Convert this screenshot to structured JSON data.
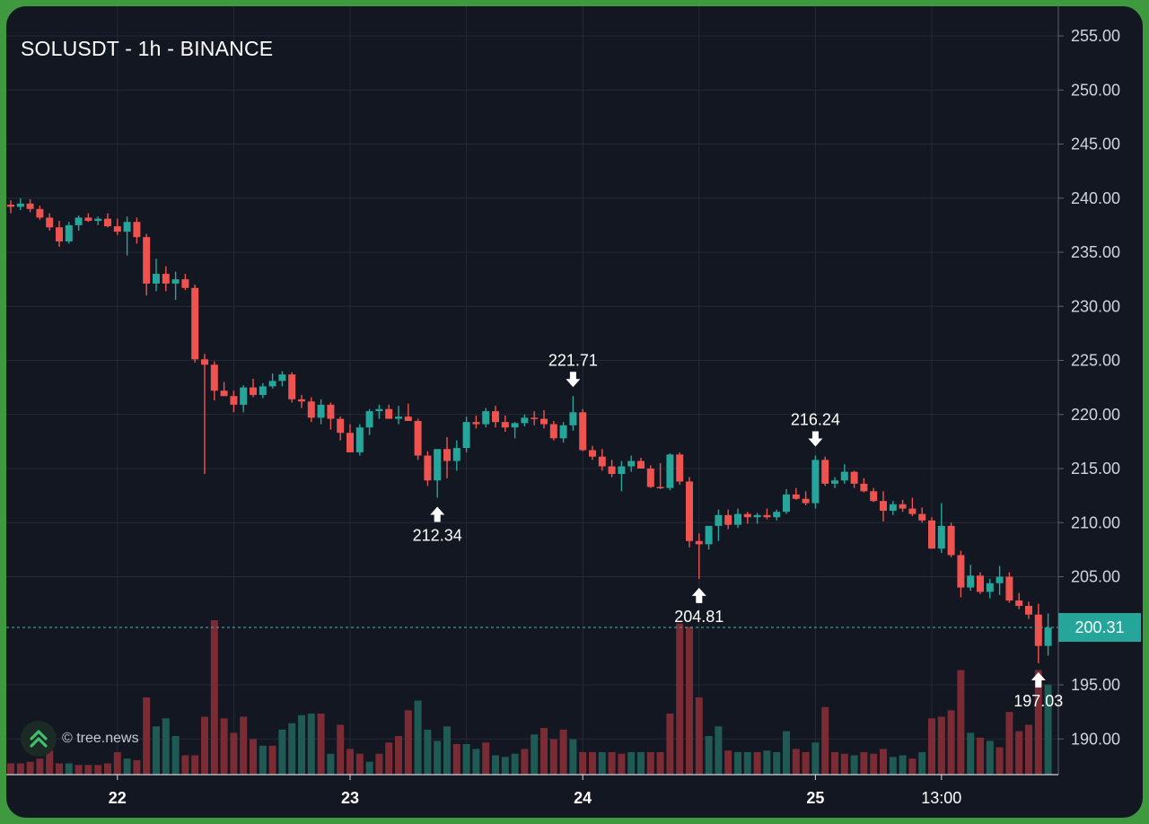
{
  "chart_title": "SOLUSDT - 1h - BINANCE",
  "last_price": "200.31",
  "watermark": "© tree.news",
  "colors": {
    "background": "#131722",
    "up": "#26a69a",
    "down": "#ef5350",
    "volume_up": "#1f5a55",
    "volume_down": "#7a2b33",
    "price_line": "#26a69a",
    "grid": "#252a36",
    "frame": "#3f9a3f"
  },
  "chart_data": {
    "type": "candlestick",
    "symbol": "SOLUSDT",
    "interval": "1h",
    "exchange": "BINANCE",
    "y_axis": {
      "position": "right",
      "ticks": [
        "255.00",
        "250.00",
        "245.00",
        "240.00",
        "235.00",
        "230.00",
        "225.00",
        "220.00",
        "215.00",
        "210.00",
        "205.00",
        "195.00",
        "190.00"
      ],
      "ylim": [
        186.5,
        257.5
      ]
    },
    "x_axis": {
      "ticks": [
        {
          "label": "22",
          "bold": true,
          "index": 11
        },
        {
          "label": "23",
          "bold": true,
          "index": 35
        },
        {
          "label": "24",
          "bold": true,
          "index": 59
        },
        {
          "label": "25",
          "bold": true,
          "index": 83
        },
        {
          "label": "13:00",
          "bold": false,
          "index": 96
        }
      ]
    },
    "grid": true,
    "current_price": 200.31,
    "candles": [
      [
        239.4,
        239.8,
        238.6,
        239.2
      ],
      [
        239.2,
        240.0,
        238.9,
        239.5
      ],
      [
        239.5,
        239.9,
        238.7,
        239.0
      ],
      [
        239.0,
        239.3,
        238.0,
        238.2
      ],
      [
        238.2,
        238.6,
        237.0,
        237.3
      ],
      [
        237.3,
        237.9,
        235.5,
        236.0
      ],
      [
        236.0,
        237.8,
        235.8,
        237.5
      ],
      [
        237.5,
        238.4,
        237.0,
        238.2
      ],
      [
        238.2,
        238.6,
        237.8,
        237.9
      ],
      [
        237.9,
        238.3,
        237.5,
        238.1
      ],
      [
        238.1,
        238.6,
        237.3,
        237.4
      ],
      [
        237.4,
        238.1,
        236.6,
        236.9
      ],
      [
        236.9,
        238.3,
        234.7,
        237.8
      ],
      [
        237.8,
        238.2,
        235.8,
        236.4
      ],
      [
        236.4,
        236.7,
        231.0,
        232.1
      ],
      [
        232.1,
        234.4,
        231.4,
        233.0
      ],
      [
        233.0,
        233.7,
        231.4,
        232.1
      ],
      [
        232.1,
        233.2,
        230.6,
        232.5
      ],
      [
        232.5,
        233.0,
        231.5,
        231.7
      ],
      [
        231.7,
        232.0,
        224.8,
        225.1
      ],
      [
        225.1,
        225.6,
        214.5,
        224.6
      ],
      [
        224.6,
        224.9,
        221.3,
        222.2
      ],
      [
        222.2,
        223.0,
        221.7,
        221.7
      ],
      [
        221.7,
        222.2,
        220.2,
        220.9
      ],
      [
        220.9,
        222.7,
        220.2,
        222.5
      ],
      [
        222.5,
        223.3,
        221.6,
        221.8
      ],
      [
        221.8,
        222.9,
        221.5,
        222.6
      ],
      [
        222.6,
        223.8,
        222.4,
        223.1
      ],
      [
        223.1,
        224.0,
        222.6,
        223.7
      ],
      [
        223.7,
        223.9,
        221.1,
        221.4
      ],
      [
        221.4,
        221.8,
        220.6,
        221.2
      ],
      [
        221.2,
        221.6,
        219.3,
        219.7
      ],
      [
        219.7,
        221.4,
        219.1,
        220.9
      ],
      [
        220.9,
        221.1,
        218.6,
        219.6
      ],
      [
        219.6,
        219.8,
        217.6,
        218.3
      ],
      [
        218.3,
        219.1,
        216.7,
        216.5
      ],
      [
        216.5,
        219.1,
        216.2,
        218.8
      ],
      [
        218.8,
        220.5,
        218.1,
        220.3
      ],
      [
        220.3,
        220.9,
        219.6,
        220.5
      ],
      [
        220.5,
        220.9,
        219.8,
        219.6
      ],
      [
        219.6,
        220.8,
        219.1,
        219.8
      ],
      [
        219.8,
        221.0,
        219.6,
        219.4
      ],
      [
        219.4,
        219.6,
        215.8,
        216.2
      ],
      [
        216.2,
        216.6,
        213.4,
        213.9
      ],
      [
        213.9,
        216.7,
        212.3,
        216.8
      ],
      [
        216.8,
        217.9,
        214.1,
        215.7
      ],
      [
        215.7,
        217.6,
        214.8,
        216.9
      ],
      [
        216.9,
        219.8,
        216.5,
        219.3
      ],
      [
        219.3,
        219.9,
        218.7,
        219.1
      ],
      [
        219.1,
        220.6,
        218.8,
        220.3
      ],
      [
        220.3,
        220.8,
        218.8,
        219.3
      ],
      [
        219.3,
        219.9,
        218.4,
        218.8
      ],
      [
        218.8,
        219.3,
        217.8,
        219.2
      ],
      [
        219.2,
        220.0,
        218.9,
        219.7
      ],
      [
        219.7,
        220.3,
        219.0,
        219.6
      ],
      [
        219.6,
        220.4,
        218.7,
        219.1
      ],
      [
        219.1,
        219.4,
        217.6,
        217.8
      ],
      [
        217.8,
        219.3,
        217.4,
        219.0
      ],
      [
        219.0,
        221.7,
        218.5,
        220.2
      ],
      [
        220.2,
        220.5,
        216.6,
        216.7
      ],
      [
        216.7,
        217.1,
        215.8,
        216.1
      ],
      [
        216.1,
        216.8,
        214.8,
        215.2
      ],
      [
        215.2,
        215.8,
        214.2,
        214.5
      ],
      [
        214.5,
        215.7,
        212.9,
        215.2
      ],
      [
        215.2,
        216.2,
        214.7,
        215.7
      ],
      [
        215.7,
        216.0,
        215.2,
        215.0
      ],
      [
        215.0,
        215.3,
        213.2,
        213.3
      ],
      [
        213.3,
        215.5,
        213.1,
        213.2
      ],
      [
        213.2,
        216.4,
        213.0,
        216.3
      ],
      [
        216.3,
        216.5,
        213.5,
        213.8
      ],
      [
        213.8,
        214.2,
        207.7,
        208.3
      ],
      [
        208.3,
        209.0,
        204.8,
        208.0
      ],
      [
        208.0,
        209.6,
        207.5,
        209.7
      ],
      [
        209.7,
        211.2,
        208.3,
        210.7
      ],
      [
        210.7,
        211.2,
        209.4,
        209.8
      ],
      [
        209.8,
        211.3,
        209.5,
        210.8
      ],
      [
        210.8,
        211.0,
        209.9,
        210.5
      ],
      [
        210.5,
        210.9,
        209.9,
        210.7
      ],
      [
        210.7,
        211.3,
        210.3,
        210.5
      ],
      [
        210.5,
        211.2,
        210.2,
        211.0
      ],
      [
        211.0,
        213.1,
        210.8,
        212.6
      ],
      [
        212.6,
        213.2,
        212.1,
        212.2
      ],
      [
        212.2,
        212.9,
        211.6,
        211.8
      ],
      [
        211.8,
        216.2,
        211.3,
        215.8
      ],
      [
        215.8,
        216.1,
        213.4,
        213.6
      ],
      [
        213.6,
        214.2,
        213.2,
        213.9
      ],
      [
        213.9,
        215.4,
        213.6,
        214.7
      ],
      [
        214.7,
        214.8,
        213.2,
        213.6
      ],
      [
        213.6,
        214.1,
        212.8,
        212.9
      ],
      [
        212.9,
        213.2,
        211.9,
        212.0
      ],
      [
        212.0,
        212.9,
        210.1,
        211.1
      ],
      [
        211.1,
        212.0,
        210.7,
        211.7
      ],
      [
        211.7,
        212.1,
        211.0,
        211.3
      ],
      [
        211.3,
        212.3,
        210.6,
        210.8
      ],
      [
        210.8,
        211.4,
        210.0,
        210.2
      ],
      [
        210.2,
        210.5,
        207.6,
        207.6
      ],
      [
        207.6,
        211.8,
        207.2,
        209.7
      ],
      [
        209.7,
        210.0,
        206.8,
        207.0
      ],
      [
        207.0,
        207.4,
        203.1,
        204.0
      ],
      [
        204.0,
        206.1,
        203.7,
        205.1
      ],
      [
        205.1,
        205.4,
        203.4,
        203.6
      ],
      [
        203.6,
        204.8,
        203.0,
        204.4
      ],
      [
        204.4,
        206.0,
        203.3,
        205.0
      ],
      [
        205.0,
        205.4,
        202.6,
        202.8
      ],
      [
        202.8,
        203.5,
        202.0,
        202.3
      ],
      [
        202.3,
        202.7,
        201.1,
        201.5
      ],
      [
        201.5,
        202.5,
        197.0,
        198.6
      ],
      [
        198.6,
        201.6,
        197.7,
        200.3
      ]
    ],
    "volumes": [
      [
        7,
        "d"
      ],
      [
        7,
        "d"
      ],
      [
        8,
        "d"
      ],
      [
        10,
        "d"
      ],
      [
        15,
        "d"
      ],
      [
        7,
        "d"
      ],
      [
        7,
        "u"
      ],
      [
        6,
        "d"
      ],
      [
        6,
        "d"
      ],
      [
        6,
        "d"
      ],
      [
        7,
        "d"
      ],
      [
        14,
        "d"
      ],
      [
        10,
        "u"
      ],
      [
        9,
        "d"
      ],
      [
        48,
        "d"
      ],
      [
        30,
        "u"
      ],
      [
        35,
        "u"
      ],
      [
        24,
        "u"
      ],
      [
        12,
        "d"
      ],
      [
        12,
        "d"
      ],
      [
        36,
        "d"
      ],
      [
        96,
        "d"
      ],
      [
        35,
        "d"
      ],
      [
        26,
        "d"
      ],
      [
        36,
        "d"
      ],
      [
        22,
        "d"
      ],
      [
        18,
        "u"
      ],
      [
        18,
        "d"
      ],
      [
        28,
        "u"
      ],
      [
        32,
        "u"
      ],
      [
        37,
        "u"
      ],
      [
        38,
        "u"
      ],
      [
        38,
        "d"
      ],
      [
        13,
        "u"
      ],
      [
        31,
        "d"
      ],
      [
        16,
        "d"
      ],
      [
        13,
        "d"
      ],
      [
        8,
        "u"
      ],
      [
        13,
        "d"
      ],
      [
        20,
        "d"
      ],
      [
        24,
        "d"
      ],
      [
        40,
        "d"
      ],
      [
        46,
        "u"
      ],
      [
        28,
        "u"
      ],
      [
        21,
        "u"
      ],
      [
        30,
        "u"
      ],
      [
        19,
        "d"
      ],
      [
        19,
        "u"
      ],
      [
        16,
        "u"
      ],
      [
        20,
        "d"
      ],
      [
        12,
        "u"
      ],
      [
        11,
        "u"
      ],
      [
        13,
        "u"
      ],
      [
        16,
        "d"
      ],
      [
        25,
        "u"
      ],
      [
        29,
        "d"
      ],
      [
        22,
        "d"
      ],
      [
        28,
        "d"
      ],
      [
        22,
        "u"
      ],
      [
        14,
        "d"
      ],
      [
        14,
        "d"
      ],
      [
        14,
        "u"
      ],
      [
        14,
        "d"
      ],
      [
        13,
        "d"
      ],
      [
        14,
        "u"
      ],
      [
        14,
        "u"
      ],
      [
        14,
        "d"
      ],
      [
        14,
        "d"
      ],
      [
        38,
        "d"
      ],
      [
        94,
        "d"
      ],
      [
        92,
        "d"
      ],
      [
        48,
        "d"
      ],
      [
        24,
        "u"
      ],
      [
        30,
        "u"
      ],
      [
        15,
        "d"
      ],
      [
        14,
        "u"
      ],
      [
        14,
        "u"
      ],
      [
        14,
        "d"
      ],
      [
        15,
        "u"
      ],
      [
        14,
        "u"
      ],
      [
        27,
        "u"
      ],
      [
        16,
        "d"
      ],
      [
        14,
        "d"
      ],
      [
        20,
        "u"
      ],
      [
        42,
        "d"
      ],
      [
        14,
        "d"
      ],
      [
        13,
        "d"
      ],
      [
        12,
        "u"
      ],
      [
        14,
        "d"
      ],
      [
        13,
        "d"
      ],
      [
        16,
        "d"
      ],
      [
        11,
        "u"
      ],
      [
        12,
        "u"
      ],
      [
        10,
        "d"
      ],
      [
        14,
        "u"
      ],
      [
        35,
        "d"
      ],
      [
        36,
        "d"
      ],
      [
        40,
        "d"
      ],
      [
        65,
        "d"
      ],
      [
        26,
        "u"
      ],
      [
        23,
        "d"
      ],
      [
        21,
        "u"
      ],
      [
        17,
        "d"
      ],
      [
        39,
        "d"
      ],
      [
        27,
        "d"
      ],
      [
        31,
        "d"
      ],
      [
        65,
        "d"
      ],
      [
        56,
        "u"
      ]
    ],
    "annotations": [
      {
        "label": "212.34",
        "index": 44,
        "price": 212.3,
        "arrow": "up",
        "placement": "below"
      },
      {
        "label": "221.71",
        "index": 58,
        "price": 221.7,
        "arrow": "down",
        "placement": "above"
      },
      {
        "label": "204.81",
        "index": 71,
        "price": 204.8,
        "arrow": "up",
        "placement": "below"
      },
      {
        "label": "216.24",
        "index": 83,
        "price": 216.2,
        "arrow": "down",
        "placement": "above"
      },
      {
        "label": "197.03",
        "index": 106,
        "price": 197.0,
        "arrow": "up",
        "placement": "below"
      }
    ]
  }
}
